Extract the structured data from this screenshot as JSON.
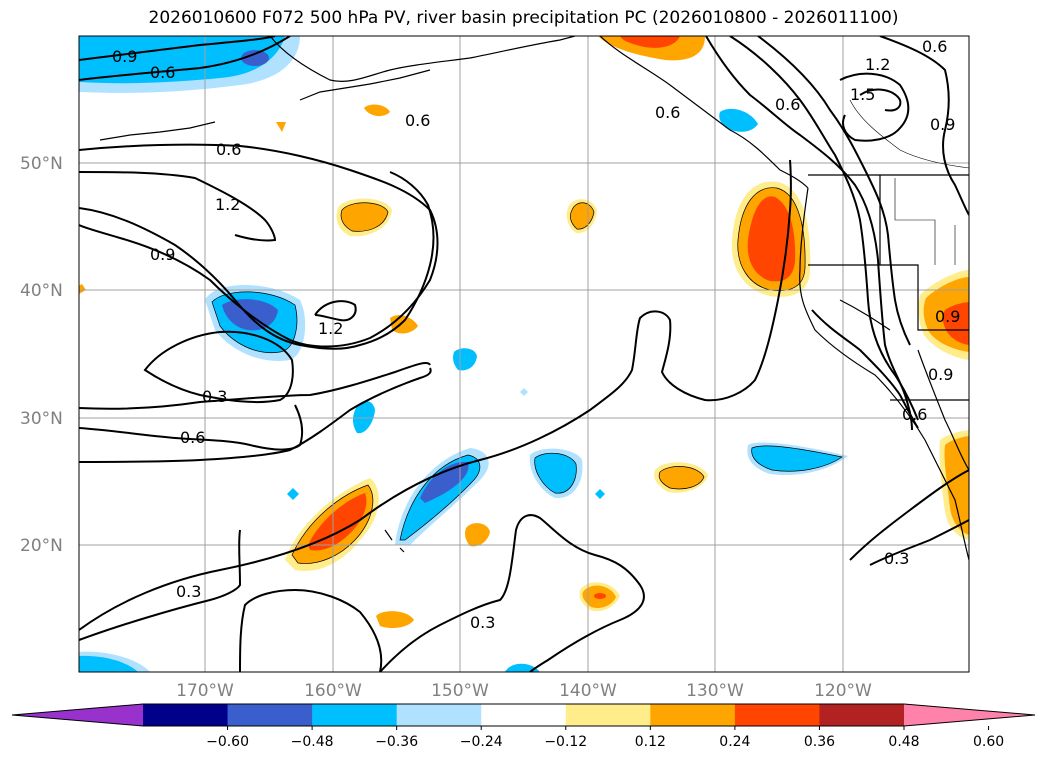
{
  "title": "2026010600 F072 500 hPa PV, river basin precipitation PC (2026010800 - 2026011100)",
  "latitude_labels": [
    "20°N",
    "30°N",
    "40°N",
    "50°N"
  ],
  "longitude_labels": [
    "170°W",
    "160°W",
    "150°W",
    "140°W",
    "130°W",
    "120°W"
  ],
  "colorbar": {
    "tick_labels": [
      "−0.60",
      "−0.48",
      "−0.36",
      "−0.24",
      "−0.12",
      "0.12",
      "0.24",
      "0.36",
      "0.48",
      "0.60"
    ],
    "colors": [
      "#9932cc",
      "#00008b",
      "#3a5fcd",
      "#00bfff",
      "#b0e2ff",
      "#ffffff",
      "#ffec8b",
      "#ffa500",
      "#ff4500",
      "#b22222",
      "#ff82ab"
    ]
  },
  "contour_labels": [
    "0.9",
    "0.6",
    "0.6",
    "0.6",
    "1.2",
    "0.9",
    "1.2",
    "0.3",
    "0.6",
    "0.3",
    "0.3",
    "0.6",
    "0.6",
    "1.2",
    "1.5",
    "0.9",
    "0.9",
    "0.9",
    "0.6",
    "0.3"
  ],
  "colors": {
    "negative_light": "#b0e2ff",
    "negative_mid": "#00bfff",
    "negative_strong": "#3a5fcd",
    "positive_light": "#ffec8b",
    "positive_mid": "#ffa500",
    "positive_strong": "#ff4500"
  }
}
